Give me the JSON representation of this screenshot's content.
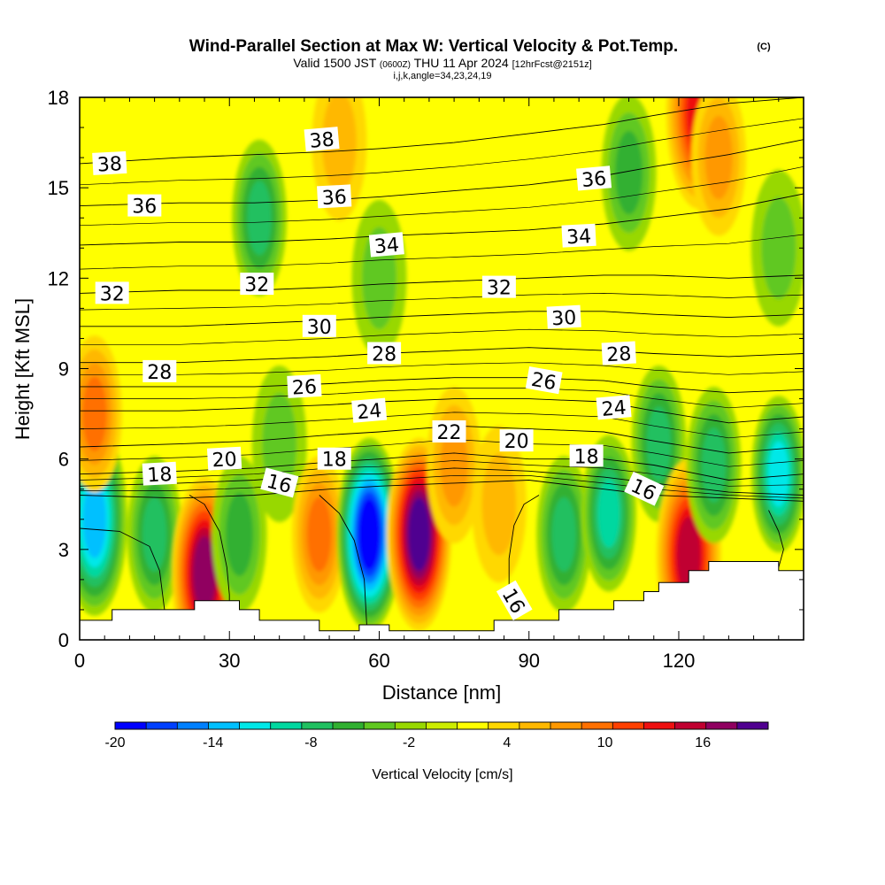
{
  "chart_data": {
    "type": "heatmap",
    "title": "Wind-Parallel Section at Max W: Vertical Velocity & Pot.Temp.",
    "title_mark": "(C)",
    "subtitle_valid": "Valid 1500 JST",
    "subtitle_utc": "(0600Z)",
    "subtitle_date": "THU 11 Apr 2024",
    "subtitle_fcst": "[12hrFcst@2151z]",
    "subtitle2": "i,j,k,angle=34,23,24,19",
    "xlabel": "Distance [nm]",
    "ylabel": "Height [Kft MSL]",
    "xlim": [
      0,
      145
    ],
    "ylim": [
      0,
      18
    ],
    "x_ticks": [
      "0",
      "30",
      "60",
      "90",
      "120"
    ],
    "x_tick_values": [
      0,
      30,
      60,
      90,
      120
    ],
    "y_ticks": [
      "0",
      "3",
      "6",
      "9",
      "12",
      "15",
      "18"
    ],
    "y_tick_values": [
      0,
      3,
      6,
      9,
      12,
      15,
      18
    ],
    "colorbar": {
      "label": "Vertical Velocity [cm/s]",
      "min": -20,
      "max": 20,
      "step": 2,
      "tick_labels": [
        "-20",
        "-14",
        "-8",
        "-2",
        "4",
        "10",
        "16"
      ],
      "tick_values": [
        -20,
        -14,
        -8,
        -2,
        4,
        10,
        16
      ],
      "colors": [
        "#0000ff",
        "#0040ff",
        "#0080ff",
        "#00c0ff",
        "#00e8e8",
        "#00d8a0",
        "#20c060",
        "#30b030",
        "#60c820",
        "#98d800",
        "#ccec00",
        "#ffff00",
        "#ffd800",
        "#ffb800",
        "#ff9800",
        "#ff7000",
        "#ff4000",
        "#ee1010",
        "#c00030",
        "#900060",
        "#500090"
      ]
    },
    "vertical_velocity_cells": [
      {
        "x": 3,
        "y": 4.0,
        "value": -14
      },
      {
        "x": 3,
        "y": 7.5,
        "value": 10
      },
      {
        "x": 15,
        "y": 3.5,
        "value": -8
      },
      {
        "x": 25,
        "y": 2.2,
        "value": 18
      },
      {
        "x": 32,
        "y": 3.5,
        "value": -6
      },
      {
        "x": 36,
        "y": 14.0,
        "value": -8
      },
      {
        "x": 40,
        "y": 6.5,
        "value": -4
      },
      {
        "x": 48,
        "y": 3.5,
        "value": 10
      },
      {
        "x": 52,
        "y": 16.5,
        "value": 6
      },
      {
        "x": 58,
        "y": 3.5,
        "value": -20
      },
      {
        "x": 60,
        "y": 12.0,
        "value": -4
      },
      {
        "x": 68,
        "y": 3.5,
        "value": 20
      },
      {
        "x": 75,
        "y": 5.8,
        "value": 8
      },
      {
        "x": 84,
        "y": 4.5,
        "value": 6
      },
      {
        "x": 97,
        "y": 3.5,
        "value": -8
      },
      {
        "x": 106,
        "y": 4.2,
        "value": -10
      },
      {
        "x": 110,
        "y": 15.5,
        "value": -6
      },
      {
        "x": 116,
        "y": 6.5,
        "value": -8
      },
      {
        "x": 122,
        "y": 2.8,
        "value": 16
      },
      {
        "x": 124,
        "y": 17.5,
        "value": 14
      },
      {
        "x": 127,
        "y": 5.8,
        "value": -8
      },
      {
        "x": 128,
        "y": 16.0,
        "value": 8
      },
      {
        "x": 140,
        "y": 5.5,
        "value": -12
      },
      {
        "x": 140,
        "y": 13.0,
        "value": -4
      }
    ],
    "theta_contours": [
      {
        "level": 16,
        "points": [
          [
            0,
            4.8
          ],
          [
            20,
            4.7
          ],
          [
            35,
            4.8
          ],
          [
            50,
            5.0
          ],
          [
            60,
            5.1
          ],
          [
            75,
            5.2
          ],
          [
            90,
            5.3
          ],
          [
            105,
            5.0
          ],
          [
            115,
            4.8
          ],
          [
            130,
            4.7
          ],
          [
            145,
            4.6
          ]
        ]
      },
      {
        "level": 18,
        "points": [
          [
            0,
            5.1
          ],
          [
            20,
            5.2
          ],
          [
            35,
            5.3
          ],
          [
            50,
            5.5
          ],
          [
            60,
            5.5
          ],
          [
            75,
            5.7
          ],
          [
            90,
            5.6
          ],
          [
            105,
            5.4
          ],
          [
            115,
            5.2
          ],
          [
            130,
            4.9
          ],
          [
            145,
            4.8
          ]
        ]
      },
      {
        "level": 20,
        "points": [
          [
            0,
            5.5
          ],
          [
            20,
            5.6
          ],
          [
            35,
            5.7
          ],
          [
            50,
            5.9
          ],
          [
            60,
            6.0
          ],
          [
            75,
            6.2
          ],
          [
            90,
            6.0
          ],
          [
            105,
            6.0
          ],
          [
            115,
            5.8
          ],
          [
            130,
            5.3
          ],
          [
            145,
            5.5
          ]
        ]
      },
      {
        "level": 22,
        "points": [
          [
            0,
            6.4
          ],
          [
            20,
            6.5
          ],
          [
            35,
            6.6
          ],
          [
            50,
            6.8
          ],
          [
            60,
            6.9
          ],
          [
            75,
            7.1
          ],
          [
            90,
            7.0
          ],
          [
            105,
            6.9
          ],
          [
            115,
            6.6
          ],
          [
            130,
            6.2
          ],
          [
            145,
            6.4
          ]
        ]
      },
      {
        "level": 24,
        "points": [
          [
            0,
            7.6
          ],
          [
            20,
            7.6
          ],
          [
            35,
            7.7
          ],
          [
            50,
            7.8
          ],
          [
            60,
            7.9
          ],
          [
            75,
            8.0
          ],
          [
            90,
            8.0
          ],
          [
            105,
            7.9
          ],
          [
            115,
            7.6
          ],
          [
            130,
            7.2
          ],
          [
            145,
            7.4
          ]
        ]
      },
      {
        "level": 26,
        "points": [
          [
            0,
            8.4
          ],
          [
            20,
            8.4
          ],
          [
            35,
            8.4
          ],
          [
            50,
            8.5
          ],
          [
            60,
            8.6
          ],
          [
            75,
            8.7
          ],
          [
            90,
            8.7
          ],
          [
            105,
            8.6
          ],
          [
            115,
            8.4
          ],
          [
            130,
            8.2
          ],
          [
            145,
            8.3
          ]
        ]
      },
      {
        "level": 28,
        "points": [
          [
            0,
            9.2
          ],
          [
            20,
            9.2
          ],
          [
            35,
            9.3
          ],
          [
            50,
            9.4
          ],
          [
            60,
            9.5
          ],
          [
            75,
            9.6
          ],
          [
            90,
            9.7
          ],
          [
            105,
            9.6
          ],
          [
            115,
            9.5
          ],
          [
            130,
            9.4
          ],
          [
            145,
            9.5
          ]
        ]
      },
      {
        "level": 30,
        "points": [
          [
            0,
            10.4
          ],
          [
            20,
            10.4
          ],
          [
            35,
            10.5
          ],
          [
            50,
            10.6
          ],
          [
            60,
            10.7
          ],
          [
            75,
            10.8
          ],
          [
            90,
            10.9
          ],
          [
            105,
            10.9
          ],
          [
            115,
            10.8
          ],
          [
            130,
            10.7
          ],
          [
            145,
            10.8
          ]
        ]
      },
      {
        "level": 32,
        "points": [
          [
            0,
            11.5
          ],
          [
            20,
            11.6
          ],
          [
            35,
            11.6
          ],
          [
            50,
            11.7
          ],
          [
            60,
            11.8
          ],
          [
            75,
            11.9
          ],
          [
            90,
            12.0
          ],
          [
            105,
            12.1
          ],
          [
            115,
            12.1
          ],
          [
            130,
            12.0
          ],
          [
            145,
            12.1
          ]
        ]
      },
      {
        "level": 34,
        "points": [
          [
            0,
            13.1
          ],
          [
            20,
            13.2
          ],
          [
            35,
            13.2
          ],
          [
            50,
            13.3
          ],
          [
            60,
            13.4
          ],
          [
            75,
            13.5
          ],
          [
            90,
            13.6
          ],
          [
            105,
            13.8
          ],
          [
            115,
            14.0
          ],
          [
            130,
            14.3
          ],
          [
            145,
            14.8
          ]
        ]
      },
      {
        "level": 36,
        "points": [
          [
            0,
            14.4
          ],
          [
            20,
            14.5
          ],
          [
            35,
            14.5
          ],
          [
            50,
            14.6
          ],
          [
            60,
            14.7
          ],
          [
            75,
            14.9
          ],
          [
            90,
            15.1
          ],
          [
            105,
            15.4
          ],
          [
            115,
            15.7
          ],
          [
            130,
            16.1
          ],
          [
            145,
            16.6
          ]
        ]
      },
      {
        "level": 38,
        "points": [
          [
            0,
            15.8
          ],
          [
            20,
            16.0
          ],
          [
            35,
            16.1
          ],
          [
            50,
            16.2
          ],
          [
            60,
            16.3
          ],
          [
            75,
            16.5
          ],
          [
            90,
            16.8
          ],
          [
            105,
            17.1
          ],
          [
            115,
            17.4
          ],
          [
            130,
            17.8
          ],
          [
            145,
            18.0
          ]
        ]
      }
    ],
    "contour_labels": [
      {
        "text": "38",
        "x": 6,
        "y": 15.8,
        "angle": -3
      },
      {
        "text": "36",
        "x": 13,
        "y": 14.4,
        "angle": 0
      },
      {
        "text": "32",
        "x": 6.5,
        "y": 11.5,
        "angle": 0
      },
      {
        "text": "28",
        "x": 16,
        "y": 8.9,
        "angle": 0
      },
      {
        "text": "18",
        "x": 16,
        "y": 5.5,
        "angle": -3
      },
      {
        "text": "20",
        "x": 29,
        "y": 6.0,
        "angle": -3
      },
      {
        "text": "16",
        "x": 40,
        "y": 5.2,
        "angle": 15
      },
      {
        "text": "32",
        "x": 35.5,
        "y": 11.8,
        "angle": 0
      },
      {
        "text": "26",
        "x": 45,
        "y": 8.4,
        "angle": -3
      },
      {
        "text": "30",
        "x": 48,
        "y": 10.4,
        "angle": 0
      },
      {
        "text": "36",
        "x": 51,
        "y": 14.7,
        "angle": -3
      },
      {
        "text": "38",
        "x": 48.5,
        "y": 16.6,
        "angle": -5
      },
      {
        "text": "18",
        "x": 51,
        "y": 6.0,
        "angle": 0
      },
      {
        "text": "24",
        "x": 58,
        "y": 7.6,
        "angle": -5
      },
      {
        "text": "28",
        "x": 61,
        "y": 9.5,
        "angle": 0
      },
      {
        "text": "34",
        "x": 61.5,
        "y": 13.1,
        "angle": -5
      },
      {
        "text": "22",
        "x": 74,
        "y": 6.9,
        "angle": 0
      },
      {
        "text": "32",
        "x": 84,
        "y": 11.7,
        "angle": 0
      },
      {
        "text": "20",
        "x": 87.5,
        "y": 6.6,
        "angle": 0
      },
      {
        "text": "16",
        "x": 87,
        "y": 1.3,
        "angle": 60
      },
      {
        "text": "26",
        "x": 93,
        "y": 8.6,
        "angle": 10
      },
      {
        "text": "30",
        "x": 97,
        "y": 10.7,
        "angle": -3
      },
      {
        "text": "34",
        "x": 100,
        "y": 13.4,
        "angle": -3
      },
      {
        "text": "36",
        "x": 103,
        "y": 15.3,
        "angle": -5
      },
      {
        "text": "18",
        "x": 101.5,
        "y": 6.1,
        "angle": 0
      },
      {
        "text": "28",
        "x": 108,
        "y": 9.5,
        "angle": -3
      },
      {
        "text": "24",
        "x": 107,
        "y": 7.7,
        "angle": -5
      },
      {
        "text": "16",
        "x": 113,
        "y": 5.0,
        "angle": 25
      }
    ],
    "theta16_dome_contours": [
      [
        [
          0,
          3.7
        ],
        [
          8,
          3.6
        ],
        [
          14,
          3.1
        ],
        [
          16,
          2.3
        ],
        [
          17,
          1.0
        ]
      ],
      [
        [
          22,
          4.8
        ],
        [
          25,
          4.5
        ],
        [
          28,
          3.6
        ],
        [
          29.5,
          2.4
        ],
        [
          30,
          1.5
        ],
        [
          30,
          1.0
        ]
      ],
      [
        [
          48,
          4.8
        ],
        [
          52,
          4.2
        ],
        [
          55,
          3.3
        ],
        [
          57,
          2.0
        ],
        [
          57.5,
          0.5
        ]
      ],
      [
        [
          86,
          1.5
        ],
        [
          86,
          2.7
        ],
        [
          87,
          3.8
        ],
        [
          89,
          4.5
        ],
        [
          92,
          4.8
        ]
      ],
      [
        [
          138,
          4.3
        ],
        [
          140,
          3.6
        ],
        [
          141,
          3.0
        ],
        [
          140,
          2.4
        ]
      ]
    ],
    "terrain_profile": [
      [
        0,
        0.65
      ],
      [
        6.5,
        0.65
      ],
      [
        6.5,
        1.0
      ],
      [
        23,
        1.0
      ],
      [
        23,
        1.3
      ],
      [
        32,
        1.3
      ],
      [
        32,
        1.0
      ],
      [
        36,
        1.0
      ],
      [
        36,
        0.65
      ],
      [
        48,
        0.65
      ],
      [
        48,
        0.3
      ],
      [
        56,
        0.3
      ],
      [
        56,
        0.5
      ],
      [
        62,
        0.5
      ],
      [
        62,
        0.3
      ],
      [
        83,
        0.3
      ],
      [
        83,
        0.65
      ],
      [
        96,
        0.65
      ],
      [
        96,
        1.0
      ],
      [
        107,
        1.0
      ],
      [
        107,
        1.3
      ],
      [
        113,
        1.3
      ],
      [
        113,
        1.6
      ],
      [
        116,
        1.6
      ],
      [
        116,
        1.9
      ],
      [
        122,
        1.9
      ],
      [
        122,
        2.3
      ],
      [
        126,
        2.3
      ],
      [
        126,
        2.6
      ],
      [
        140,
        2.6
      ],
      [
        140,
        2.3
      ],
      [
        145,
        2.3
      ]
    ]
  }
}
